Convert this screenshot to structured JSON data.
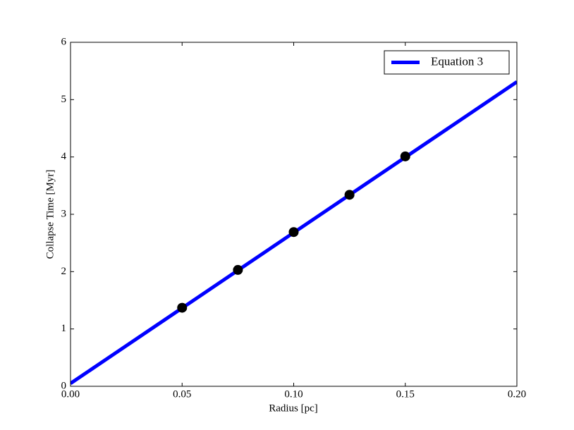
{
  "chart_data": {
    "type": "line",
    "xlabel": "Radius [pc]",
    "ylabel": "Collapse Time [Myr]",
    "series": [
      {
        "name": "Equation 3",
        "color": "#0000ff",
        "x": [
          0,
          0.2
        ],
        "values": [
          0.05,
          5.31
        ]
      }
    ],
    "points": {
      "color": "#000000",
      "x": [
        0.05,
        0.075,
        0.1,
        0.125,
        0.15
      ],
      "values": [
        1.37,
        2.03,
        2.69,
        3.34,
        4.01
      ]
    },
    "xlim": [
      0,
      0.2
    ],
    "ylim": [
      0,
      6
    ],
    "xticks": [
      {
        "value": 0,
        "label": "0.00"
      },
      {
        "value": 0.05,
        "label": "0.05"
      },
      {
        "value": 0.1,
        "label": "0.10"
      },
      {
        "value": 0.15,
        "label": "0.15"
      },
      {
        "value": 0.2,
        "label": "0.20"
      }
    ],
    "yticks": [
      0,
      1,
      2,
      3,
      4,
      5,
      6
    ],
    "legend": "upper right"
  }
}
